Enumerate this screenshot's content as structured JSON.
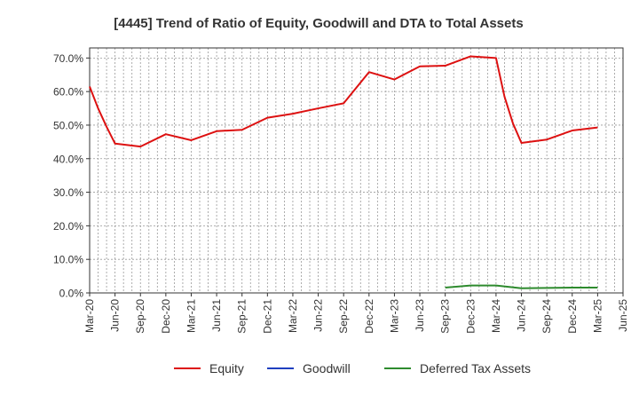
{
  "chart_data": {
    "type": "line",
    "title": "[4445]  Trend of Ratio of Equity, Goodwill and DTA to Total Assets",
    "xlabel": "",
    "ylabel": "",
    "ylim": [
      0,
      73
    ],
    "yticks": [
      "0.0%",
      "10.0%",
      "20.0%",
      "30.0%",
      "40.0%",
      "50.0%",
      "60.0%",
      "70.0%"
    ],
    "ytick_values": [
      0,
      10,
      20,
      30,
      40,
      50,
      60,
      70
    ],
    "xticks": [
      "Mar-20",
      "Jun-20",
      "Sep-20",
      "Dec-20",
      "Mar-21",
      "Jun-21",
      "Sep-21",
      "Dec-21",
      "Mar-22",
      "Jun-22",
      "Sep-22",
      "Dec-22",
      "Mar-23",
      "Jun-23",
      "Sep-23",
      "Dec-23",
      "Mar-24",
      "Jun-24",
      "Sep-24",
      "Dec-24",
      "Mar-25",
      "Jun-25"
    ],
    "grid": true,
    "legend_position": "bottom",
    "series": [
      {
        "name": "Equity",
        "color": "#dd1111",
        "points": [
          [
            "Mar-20",
            61.5
          ],
          [
            "Apr-20",
            55.0
          ],
          [
            "May-20",
            49.5
          ],
          [
            "Jun-20",
            44.5
          ],
          [
            "Sep-20",
            43.6
          ],
          [
            "Dec-20",
            47.3
          ],
          [
            "Mar-21",
            45.5
          ],
          [
            "Jun-21",
            48.2
          ],
          [
            "Sep-21",
            48.6
          ],
          [
            "Dec-21",
            52.2
          ],
          [
            "Mar-22",
            53.4
          ],
          [
            "Jun-22",
            55.0
          ],
          [
            "Sep-22",
            56.5
          ],
          [
            "Dec-22",
            65.8
          ],
          [
            "Mar-23",
            63.6
          ],
          [
            "Jun-23",
            67.5
          ],
          [
            "Sep-23",
            67.7
          ],
          [
            "Dec-23",
            70.5
          ],
          [
            "Mar-24",
            70.0
          ],
          [
            "Apr-24",
            58.5
          ],
          [
            "May-24",
            50.5
          ],
          [
            "Jun-24",
            44.7
          ],
          [
            "Sep-24",
            45.7
          ],
          [
            "Dec-24",
            48.4
          ],
          [
            "Mar-25",
            49.3
          ]
        ]
      },
      {
        "name": "Goodwill",
        "color": "#1f3fbf",
        "points": []
      },
      {
        "name": "Deferred Tax Assets",
        "color": "#2e8b2e",
        "points": [
          [
            "Sep-23",
            1.6
          ],
          [
            "Dec-23",
            2.2
          ],
          [
            "Mar-24",
            2.2
          ],
          [
            "Jun-24",
            1.4
          ],
          [
            "Sep-24",
            1.5
          ],
          [
            "Dec-24",
            1.6
          ],
          [
            "Mar-25",
            1.6
          ]
        ]
      }
    ]
  }
}
